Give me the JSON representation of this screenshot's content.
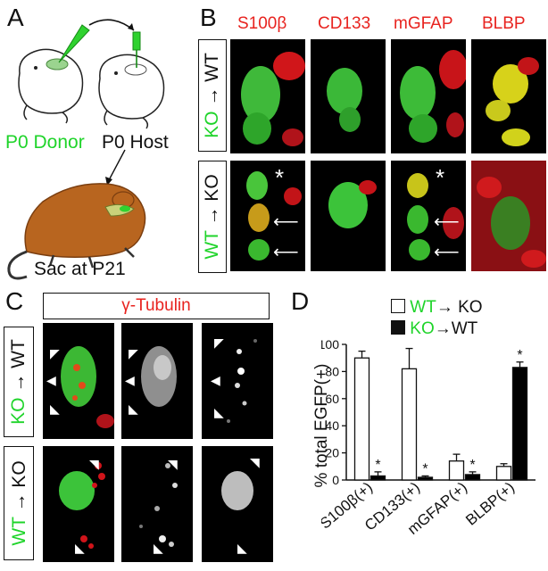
{
  "panels": {
    "A": {
      "letter": "A",
      "donor_label": "P0 Donor",
      "host_label": "P0 Host",
      "sac_label": "Sac at P21"
    },
    "B": {
      "letter": "B",
      "markers": [
        "S100β",
        "CD133",
        "mGFAP",
        "BLBP"
      ],
      "row1": {
        "from": "KO",
        "to": "WT",
        "arrow": "→"
      },
      "row2": {
        "from": "WT",
        "to": "KO",
        "arrow": "→"
      },
      "asterisk": "*"
    },
    "C": {
      "letter": "C",
      "marker": "γ-Tubulin",
      "row1": {
        "from": "KO",
        "to": "WT",
        "arrow": "→"
      },
      "row2": {
        "from": "WT",
        "to": "KO",
        "arrow": "→"
      }
    },
    "D": {
      "letter": "D",
      "legend": {
        "open_from": "WT",
        "open_to": "KO",
        "filled_from": "KO",
        "filled_to": "WT",
        "arrow": "→"
      }
    }
  },
  "chart_data": {
    "type": "bar",
    "ylabel": "% total EGFP(+)",
    "ylim": [
      0,
      100
    ],
    "yticks": [
      0,
      20,
      40,
      60,
      80,
      100
    ],
    "categories": [
      "S100β(+)",
      "CD133(+)",
      "mGFAP(+)",
      "BLBP(+)"
    ],
    "series": [
      {
        "name": "WT→ KO",
        "fill": "#ffffff",
        "values": [
          90,
          82,
          14,
          10
        ],
        "errors": [
          5,
          15,
          5,
          2
        ]
      },
      {
        "name": "KO→WT",
        "fill": "#000000",
        "values": [
          3,
          2,
          4,
          83
        ],
        "errors": [
          3,
          1,
          2,
          4
        ]
      }
    ],
    "significance": [
      "*",
      "*",
      "*",
      "*"
    ]
  }
}
